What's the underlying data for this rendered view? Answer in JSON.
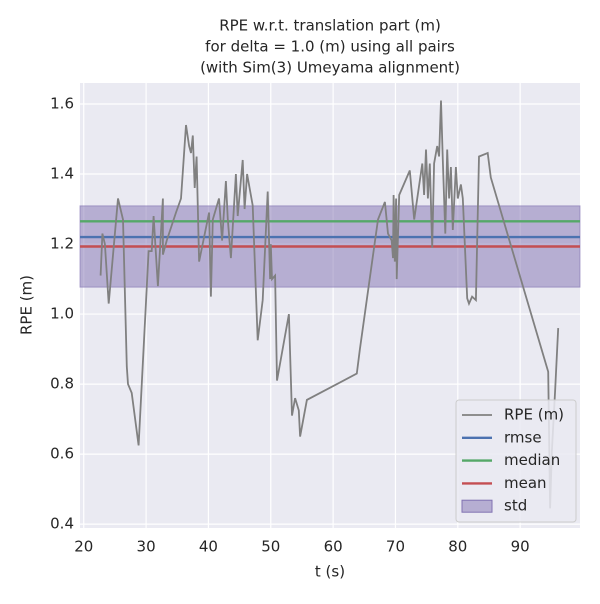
{
  "chart_data": {
    "type": "line",
    "title": [
      "RPE w.r.t. translation part (m)",
      "for delta = 1.0 (m) using all pairs",
      "(with Sim(3) Umeyama alignment)"
    ],
    "xlabel": "t (s)",
    "ylabel": "RPE (m)",
    "xlim": [
      19.4,
      99.6
    ],
    "ylim": [
      0.389,
      1.66
    ],
    "xticks": [
      20,
      30,
      40,
      50,
      60,
      70,
      80,
      90
    ],
    "yticks": [
      0.4,
      0.6,
      0.8,
      {
        "value": 1,
        "label": "1.0"
      },
      1.2,
      1.4,
      1.6
    ],
    "grid": true,
    "legend": "lower right",
    "series": [
      {
        "name": "RPE (m)",
        "color": "#808080",
        "x": [
          22.7,
          23.0,
          23.4,
          24.0,
          25.5,
          26.3,
          26.9,
          27.1,
          27.7,
          28.8,
          30.0,
          30.4,
          30.9,
          31.2,
          31.9,
          32.7,
          32.7,
          33.3,
          34.8,
          35.6,
          36.4,
          36.9,
          37.2,
          37.5,
          37.8,
          38.1,
          38.5,
          40.1,
          40.4,
          40.7,
          41.7,
          42.2,
          42.8,
          43.1,
          43.6,
          44.4,
          44.7,
          45.5,
          45.8,
          46.2,
          47.1,
          47.9,
          48.7,
          49.5,
          49.9,
          50.0,
          50.2,
          50.7,
          51.0,
          52.9,
          53.4,
          53.9,
          54.5,
          54.7,
          55.8,
          63.8,
          64.3,
          67.2,
          68.3,
          68.8,
          69.4,
          69.6,
          69.7,
          69.9,
          70.1,
          70.2,
          70.6,
          72.3,
          73.0,
          74.3,
          74.6,
          74.9,
          75.2,
          75.5,
          75.9,
          76.2,
          76.7,
          77.0,
          77.3,
          77.6,
          78.0,
          78.3,
          78.6,
          78.9,
          79.2,
          79.7,
          80.0,
          80.5,
          80.8,
          81.5,
          81.8,
          82.3,
          82.9,
          83.4,
          84.8,
          85.3,
          94.5,
          94.8,
          95.1,
          95.6,
          96.1
        ],
        "values": [
          1.11,
          1.23,
          1.2,
          1.03,
          1.33,
          1.27,
          0.85,
          0.8,
          0.775,
          0.625,
          1.04,
          1.18,
          1.18,
          1.28,
          1.08,
          1.33,
          1.17,
          1.21,
          1.29,
          1.33,
          1.54,
          1.48,
          1.46,
          1.51,
          1.36,
          1.45,
          1.15,
          1.29,
          1.05,
          1.27,
          1.33,
          1.21,
          1.38,
          1.27,
          1.16,
          1.4,
          1.28,
          1.44,
          1.3,
          1.4,
          1.31,
          0.925,
          1.04,
          1.35,
          1.1,
          1.2,
          1.1,
          1.11,
          0.81,
          1.0,
          0.71,
          0.76,
          0.725,
          0.65,
          0.755,
          0.83,
          0.9,
          1.27,
          1.32,
          1.23,
          1.21,
          1.16,
          1.34,
          1.15,
          1.33,
          1.1,
          1.34,
          1.41,
          1.27,
          1.43,
          1.34,
          1.47,
          1.33,
          1.43,
          1.19,
          1.43,
          1.48,
          1.45,
          1.61,
          1.44,
          1.23,
          1.47,
          1.33,
          1.42,
          1.24,
          1.42,
          1.33,
          1.37,
          1.33,
          1.045,
          1.03,
          1.05,
          1.04,
          1.45,
          1.46,
          1.39,
          0.835,
          0.445,
          0.61,
          0.78,
          0.96
        ]
      }
    ],
    "hlines": [
      {
        "name": "rmse",
        "color": "#4c72b0",
        "value": 1.22
      },
      {
        "name": "median",
        "color": "#55a868",
        "value": 1.265
      },
      {
        "name": "mean",
        "color": "#c44e52",
        "value": 1.193
      }
    ],
    "band": {
      "name": "std",
      "color": "#8172b2",
      "value": 0.116
    }
  }
}
